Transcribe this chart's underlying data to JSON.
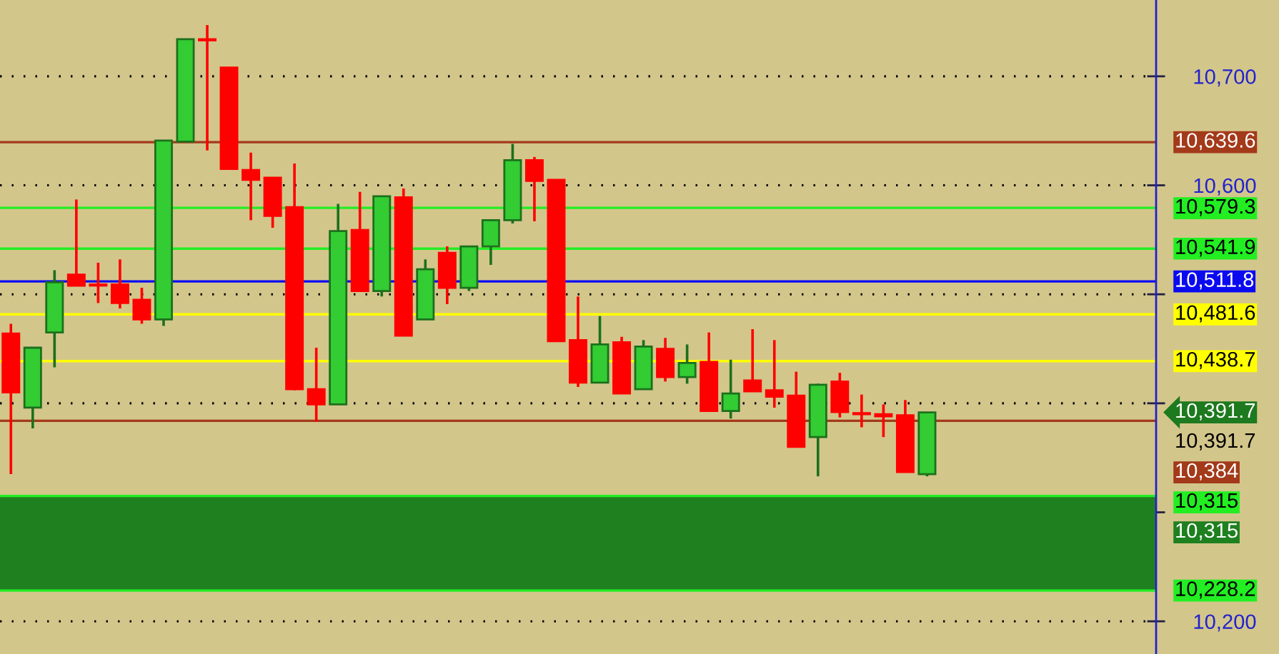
{
  "chart_data": {
    "type": "candlestick",
    "categories": [
      null,
      null,
      null,
      null,
      null,
      null,
      null,
      null,
      null,
      null,
      null,
      null,
      null,
      null,
      null,
      null,
      null,
      null,
      null,
      null,
      null,
      null,
      null,
      null,
      null,
      null,
      null,
      null,
      null,
      null,
      null,
      null,
      null,
      null,
      null,
      null,
      null,
      null,
      null,
      null,
      null,
      null,
      null,
      null,
      null,
      null,
      null,
      null,
      null,
      null,
      null,
      null,
      null
    ],
    "ohlc": [
      [
        10464,
        10473,
        10335,
        10410
      ],
      [
        10396,
        10451,
        10377,
        10451
      ],
      [
        10465,
        10522,
        10433,
        10511
      ],
      [
        10518,
        10587,
        10508,
        10508
      ],
      [
        10509,
        10529,
        10492,
        10508
      ],
      [
        10509,
        10532,
        10487,
        10492
      ],
      [
        10495,
        10506,
        10473,
        10477
      ],
      [
        10477,
        10641,
        10471,
        10641
      ],
      [
        10640,
        10734,
        10640,
        10734
      ],
      [
        10734,
        10747,
        10632,
        10733
      ],
      [
        10708,
        10708,
        10615,
        10615
      ],
      [
        10614,
        10630,
        10568,
        10605
      ],
      [
        10607,
        10607,
        10561,
        10572
      ],
      [
        10580,
        10620,
        10412,
        10413
      ],
      [
        10413,
        10451,
        10383,
        10399
      ],
      [
        10399,
        10583,
        10399,
        10558
      ],
      [
        10559,
        10594,
        10503,
        10503
      ],
      [
        10503,
        10590,
        10498,
        10590
      ],
      [
        10589,
        10597,
        10462,
        10462
      ],
      [
        10477,
        10532,
        10477,
        10523
      ],
      [
        10538,
        10544,
        10491,
        10506
      ],
      [
        10506,
        10544,
        10503,
        10544
      ],
      [
        10544,
        10568,
        10527,
        10568
      ],
      [
        10568,
        10638,
        10565,
        10623
      ],
      [
        10623,
        10626,
        10567,
        10604
      ],
      [
        10605,
        10605,
        10457,
        10457
      ],
      [
        10458,
        10498,
        10415,
        10419
      ],
      [
        10419,
        10480,
        10419,
        10454
      ],
      [
        10456,
        10461,
        10409,
        10409
      ],
      [
        10413,
        10458,
        10413,
        10452
      ],
      [
        10450,
        10460,
        10420,
        10424
      ],
      [
        10424,
        10454,
        10418,
        10437
      ],
      [
        10438,
        10465,
        10393,
        10393
      ],
      [
        10393,
        10440,
        10386,
        10409
      ],
      [
        10421,
        10468,
        10411,
        10411
      ],
      [
        10412,
        10458,
        10396,
        10406
      ],
      [
        10407,
        10429,
        10360,
        10360
      ],
      [
        10369,
        10418,
        10333,
        10417
      ],
      [
        10420,
        10428,
        10387,
        10392
      ],
      [
        10391,
        10408,
        10378,
        10390
      ],
      [
        10390,
        10399,
        10369,
        10388
      ],
      [
        10389,
        10403,
        10337,
        10337
      ],
      [
        10335,
        10391.7,
        10333,
        10391.7
      ],
      null,
      null,
      null,
      null,
      null,
      null,
      null,
      null,
      null,
      null
    ],
    "colors": [
      "#ff0000",
      "#33cc33",
      "#33cc33",
      "#ff0000",
      "#ff0000",
      "#ff0000",
      "#ff0000",
      "#33cc33",
      "#33cc33",
      "#ff0000",
      "#ff0000",
      "#ff0000",
      "#ff0000",
      "#ff0000",
      "#ff0000",
      "#33cc33",
      "#ff0000",
      "#33cc33",
      "#ff0000",
      "#33cc33",
      "#ff0000",
      "#33cc33",
      "#33cc33",
      "#33cc33",
      "#ff0000",
      "#ff0000",
      "#ff0000",
      "#33cc33",
      "#ff0000",
      "#33cc33",
      "#ff0000",
      "#33cc33",
      "#ff0000",
      "#33cc33",
      "#ff0000",
      "#ff0000",
      "#ff0000",
      "#33cc33",
      "#ff0000",
      "#ff0000",
      "#ff0000",
      "#ff0000",
      "#33cc33",
      null,
      null,
      null,
      null,
      null,
      null,
      null,
      null,
      null,
      null
    ],
    "ylim": [
      10170,
      10770
    ],
    "yticks": [
      {
        "value": 10200,
        "label": "10,200"
      },
      {
        "value": 10300,
        "label": null
      },
      {
        "value": 10400,
        "label": null
      },
      {
        "value": 10500,
        "label": null
      },
      {
        "value": 10600,
        "label": "10,600"
      },
      {
        "value": 10700,
        "label": "10,700"
      }
    ],
    "grid": "y",
    "tick_labels": "y",
    "ref_lines": [
      {
        "axis": "y",
        "value": 10639.6,
        "label": "10,639.6",
        "color": "#a33a1a"
      },
      {
        "axis": "y",
        "value": 10579.3,
        "label": "10,579.3",
        "color": "#22ee22"
      },
      {
        "axis": "y",
        "value": 10541.9,
        "label": "10,541.9",
        "color": "#22ee22"
      },
      {
        "axis": "y",
        "value": 10511.8,
        "label": "10,511.8",
        "color": "#0a0af0"
      },
      {
        "axis": "y",
        "value": 10481.6,
        "label": "10,481.6",
        "color": "#ffff00"
      },
      {
        "axis": "y",
        "value": 10438.7,
        "label": "10,438.7",
        "color": "#ffff00"
      },
      {
        "axis": "y",
        "value": 10384,
        "label": "10,384",
        "color": "#a33a1a"
      },
      {
        "axis": "y",
        "value": 10315,
        "label": "10,315",
        "color": "#22ee22"
      },
      {
        "axis": "y",
        "value": 10228.2,
        "label": "10,228.2",
        "color": "#22ee22"
      }
    ],
    "bands": [
      {
        "axis": "y",
        "from": 10228.2,
        "to": 10315,
        "label": "10,315",
        "color": "#1f8020"
      }
    ],
    "annotations": [
      "10,391.7",
      "10,391.7"
    ]
  }
}
